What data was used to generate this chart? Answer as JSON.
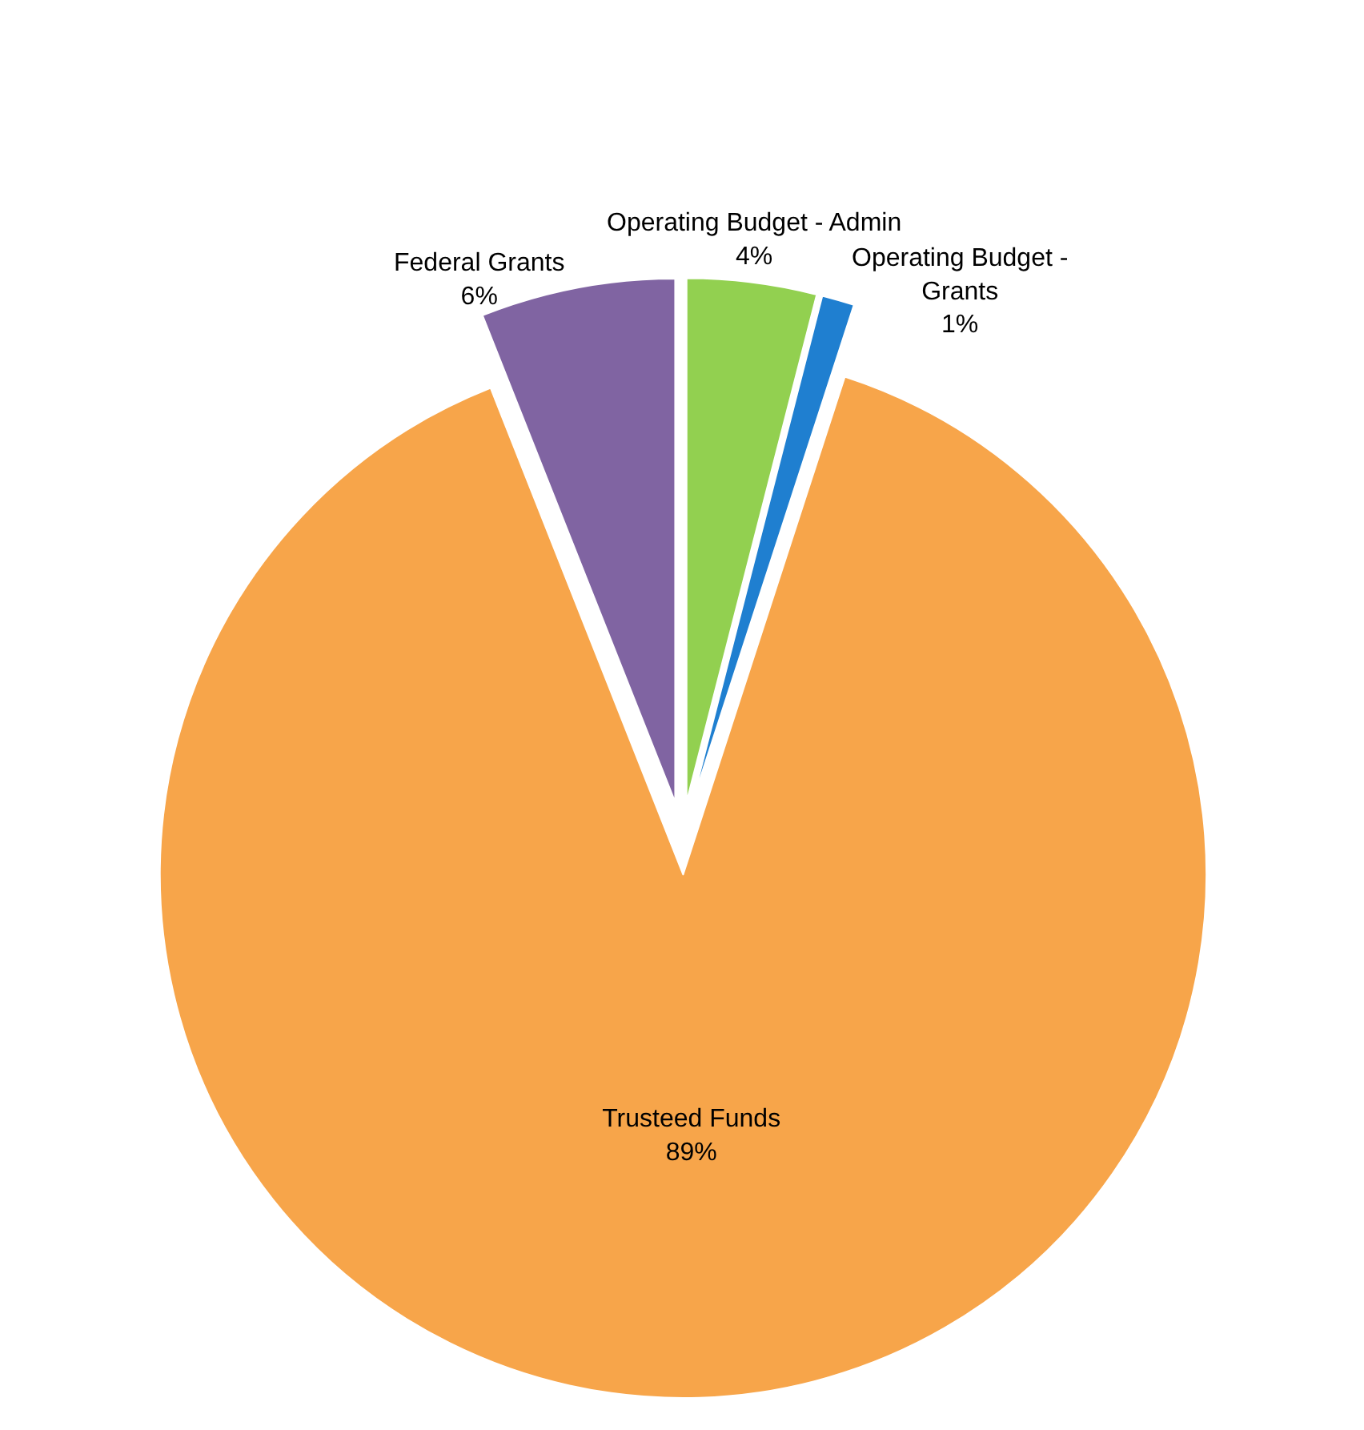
{
  "chart_data": {
    "type": "pie",
    "categories": [
      "Operating Budget - Admin",
      "Operating Budget - Grants",
      "Trusteed Funds",
      "Federal Grants"
    ],
    "values": [
      4,
      1,
      89,
      6
    ],
    "value_labels": [
      "4%",
      "1%",
      "89%",
      "6%"
    ],
    "colors": [
      "#92d050",
      "#1f7fd0",
      "#f7a54a",
      "#8064a2"
    ],
    "legend": false
  }
}
